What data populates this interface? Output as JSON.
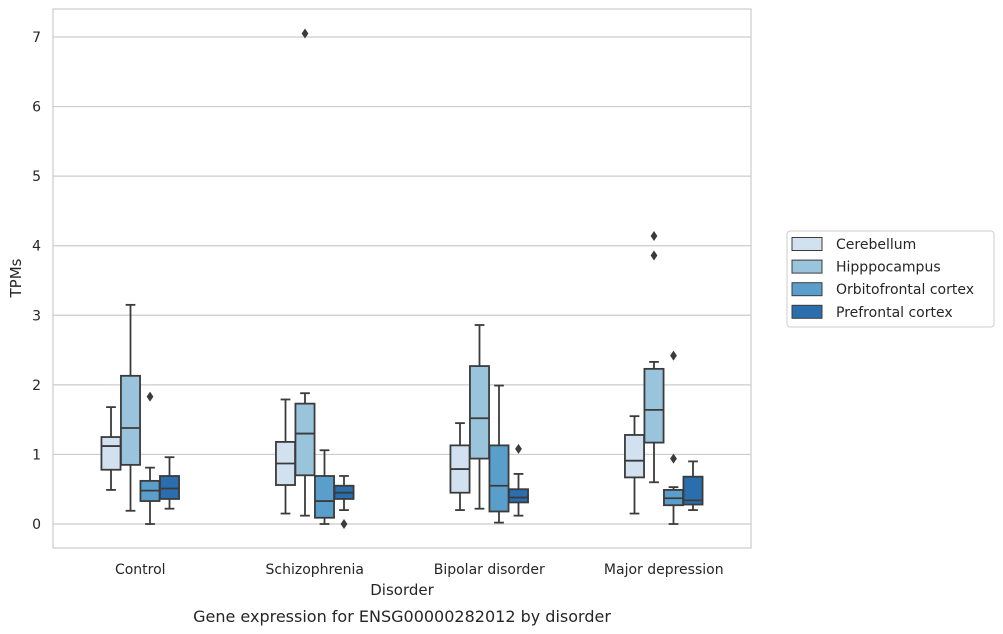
{
  "chart_data": {
    "type": "box",
    "xlabel": "Disorder",
    "ylabel": "TPMs",
    "caption": "Gene expression for ENSG00000282012 by disorder",
    "ylim": [
      -0.35,
      7.4
    ],
    "yticks": [
      0,
      1,
      2,
      3,
      4,
      5,
      6,
      7
    ],
    "grid": "horizontal",
    "legend_position": "right",
    "categories": [
      "Control",
      "Schizophrenia",
      "Bipolar disorder",
      "Major depression"
    ],
    "series": [
      {
        "name": "Cerebellum",
        "color": "#d1e1f0",
        "boxes": [
          {
            "whislo": 0.49,
            "q1": 0.78,
            "med": 1.12,
            "q3": 1.25,
            "whishi": 1.68,
            "fliers": []
          },
          {
            "whislo": 0.15,
            "q1": 0.56,
            "med": 0.87,
            "q3": 1.18,
            "whishi": 1.79,
            "fliers": []
          },
          {
            "whislo": 0.2,
            "q1": 0.45,
            "med": 0.79,
            "q3": 1.13,
            "whishi": 1.45,
            "fliers": []
          },
          {
            "whislo": 0.15,
            "q1": 0.67,
            "med": 0.91,
            "q3": 1.28,
            "whishi": 1.55,
            "fliers": []
          }
        ]
      },
      {
        "name": "Hipppocampus",
        "color": "#9ac3dc",
        "boxes": [
          {
            "whislo": 0.19,
            "q1": 0.85,
            "med": 1.38,
            "q3": 2.13,
            "whishi": 3.15,
            "fliers": []
          },
          {
            "whislo": 0.12,
            "q1": 0.7,
            "med": 1.3,
            "q3": 1.73,
            "whishi": 1.88,
            "fliers": [
              7.05
            ]
          },
          {
            "whislo": 0.22,
            "q1": 0.94,
            "med": 1.52,
            "q3": 2.27,
            "whishi": 2.86,
            "fliers": []
          },
          {
            "whislo": 0.6,
            "q1": 1.17,
            "med": 1.64,
            "q3": 2.23,
            "whishi": 2.33,
            "fliers": [
              3.86,
              4.14
            ]
          }
        ]
      },
      {
        "name": "Orbitofrontal cortex",
        "color": "#5a9fcc",
        "boxes": [
          {
            "whislo": 0.0,
            "q1": 0.33,
            "med": 0.48,
            "q3": 0.62,
            "whishi": 0.81,
            "fliers": [
              1.83
            ]
          },
          {
            "whislo": 0.0,
            "q1": 0.09,
            "med": 0.33,
            "q3": 0.69,
            "whishi": 1.06,
            "fliers": []
          },
          {
            "whislo": 0.02,
            "q1": 0.18,
            "med": 0.55,
            "q3": 1.13,
            "whishi": 1.99,
            "fliers": []
          },
          {
            "whislo": 0.0,
            "q1": 0.27,
            "med": 0.37,
            "q3": 0.49,
            "whishi": 0.53,
            "fliers": [
              0.94,
              2.42
            ]
          }
        ]
      },
      {
        "name": "Prefrontal cortex",
        "color": "#2b6ead",
        "boxes": [
          {
            "whislo": 0.22,
            "q1": 0.36,
            "med": 0.51,
            "q3": 0.69,
            "whishi": 0.96,
            "fliers": []
          },
          {
            "whislo": 0.2,
            "q1": 0.36,
            "med": 0.45,
            "q3": 0.55,
            "whishi": 0.69,
            "fliers": [
              0.0
            ]
          },
          {
            "whislo": 0.12,
            "q1": 0.31,
            "med": 0.38,
            "q3": 0.5,
            "whishi": 0.72,
            "fliers": [
              1.08
            ]
          },
          {
            "whislo": 0.2,
            "q1": 0.28,
            "med": 0.34,
            "q3": 0.68,
            "whishi": 0.9,
            "fliers": []
          }
        ]
      }
    ]
  }
}
